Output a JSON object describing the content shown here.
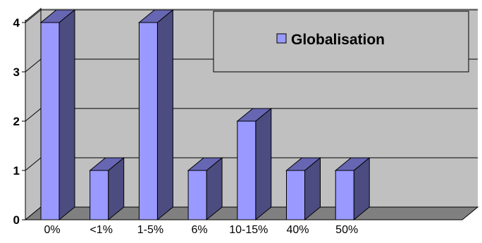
{
  "chart_data": {
    "type": "bar",
    "categories": [
      "0%",
      "<1%",
      "1-5%",
      "6%",
      "10-15%",
      "40%",
      "50%"
    ],
    "series": [
      {
        "name": "Globalisation",
        "values": [
          4,
          1,
          4,
          1,
          2,
          1,
          1
        ]
      }
    ],
    "ylim": [
      0,
      4
    ],
    "yticks": [
      "0",
      "1",
      "2",
      "3",
      "4"
    ],
    "grid": true,
    "legend_position": "top-right",
    "style": "3d-column",
    "colors": {
      "bar_front": "#9999ff",
      "bar_side": "#4c4c80",
      "bar_top": "#6666b3",
      "wall": "#c0c0c0",
      "floor": "#808080"
    }
  }
}
